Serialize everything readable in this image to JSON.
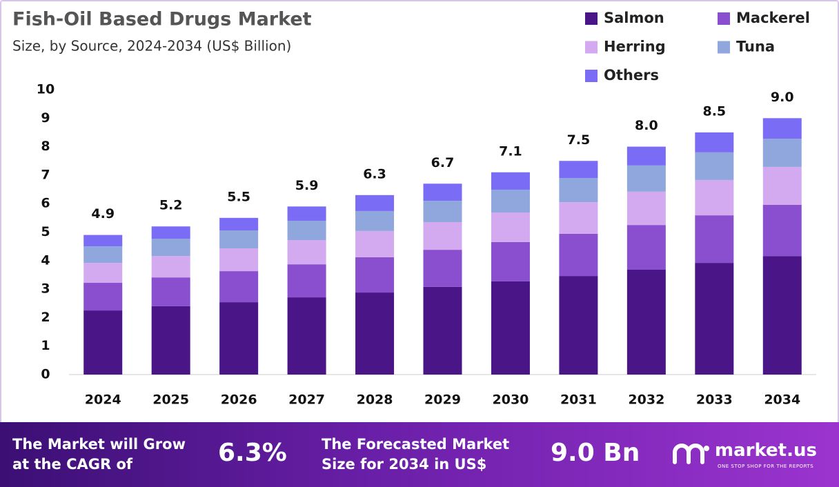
{
  "chart_data": {
    "type": "stacked-bar",
    "title": "Fish-Oil Based Drugs Market",
    "subtitle": "Size, by Source, 2024-2034 (US$ Billion)",
    "categories": [
      "2024",
      "2025",
      "2026",
      "2027",
      "2028",
      "2029",
      "2030",
      "2031",
      "2032",
      "2033",
      "2034"
    ],
    "series": [
      {
        "name": "Salmon",
        "color": "#4a1586",
        "values": [
          2.25,
          2.4,
          2.54,
          2.71,
          2.88,
          3.08,
          3.27,
          3.46,
          3.68,
          3.92,
          4.16
        ]
      },
      {
        "name": "Mackerel",
        "color": "#8a4fcf",
        "values": [
          0.97,
          1.01,
          1.09,
          1.16,
          1.24,
          1.3,
          1.38,
          1.48,
          1.57,
          1.67,
          1.8
        ]
      },
      {
        "name": "Herring",
        "color": "#d3aaf0",
        "values": [
          0.7,
          0.75,
          0.8,
          0.85,
          0.92,
          0.97,
          1.04,
          1.11,
          1.17,
          1.24,
          1.33
        ]
      },
      {
        "name": "Tuna",
        "color": "#8fa7dc",
        "values": [
          0.58,
          0.61,
          0.63,
          0.68,
          0.7,
          0.75,
          0.8,
          0.85,
          0.92,
          0.97,
          0.99
        ]
      },
      {
        "name": "Others",
        "color": "#7a6cf5",
        "values": [
          0.4,
          0.43,
          0.44,
          0.5,
          0.56,
          0.6,
          0.61,
          0.6,
          0.66,
          0.7,
          0.72
        ]
      }
    ],
    "totals": {
      "values": [
        4.9,
        5.2,
        5.5,
        5.9,
        6.3,
        6.7,
        7.1,
        7.5,
        8.0,
        8.5,
        9.0
      ],
      "value_labels": [
        "4.9",
        "5.2",
        "5.5",
        "5.9",
        "6.3",
        "6.7",
        "7.1",
        "7.5",
        "8.0",
        "8.5",
        "9.0"
      ]
    },
    "ylim": [
      0,
      10
    ],
    "yticks": [
      0,
      1,
      2,
      3,
      4,
      5,
      6,
      7,
      8,
      9,
      10
    ],
    "grid": false,
    "legend": "top-right"
  },
  "footer": {
    "cagr_text": [
      "The Market will Grow",
      "at the CAGR of"
    ],
    "cagr_value": "6.3%",
    "forecast_text": [
      "The Forecasted Market",
      "Size for 2034 in US$"
    ],
    "forecast_value": "9.0 Bn",
    "brand": "market.us",
    "tagline": "ONE STOP SHOP FOR THE REPORTS"
  }
}
